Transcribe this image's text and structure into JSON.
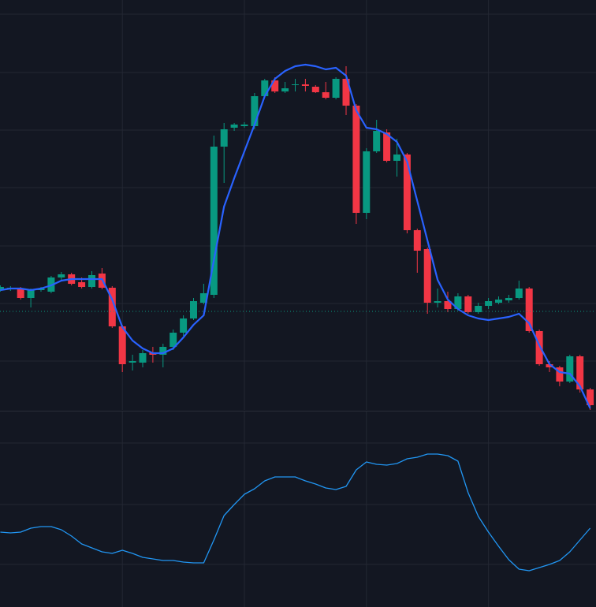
{
  "chart_data": [
    {
      "type": "candlestick",
      "categories": [
        null,
        null,
        null,
        null,
        null,
        null,
        null,
        null,
        null,
        null,
        null,
        null,
        null,
        null,
        null,
        null,
        null,
        null,
        null,
        null,
        null,
        null,
        null,
        null,
        null,
        null,
        null,
        null,
        null,
        null,
        null,
        null,
        null,
        null,
        null,
        null,
        null,
        null,
        null,
        null,
        null,
        null,
        null,
        null,
        null,
        null,
        null,
        null,
        null,
        null,
        null,
        null,
        null,
        null,
        null,
        null,
        null,
        null,
        null
      ],
      "open": [
        152,
        154,
        154,
        142,
        152,
        150,
        168,
        172,
        162,
        156,
        173,
        155,
        106,
        60,
        60,
        73,
        70,
        80,
        98,
        116,
        136,
        146,
        334,
        358,
        360,
        360,
        398,
        418,
        404,
        412,
        413,
        410,
        403,
        396,
        420,
        386,
        250,
        328,
        352,
        316,
        324,
        228,
        204,
        136,
        138,
        128,
        144,
        124,
        132,
        136,
        139,
        142,
        154,
        100,
        58,
        54,
        36,
        68,
        26
      ],
      "high": [
        158,
        157,
        156,
        154,
        156,
        170,
        175,
        174,
        168,
        176,
        180,
        157,
        108,
        70,
        76,
        80,
        84,
        102,
        120,
        142,
        160,
        348,
        364,
        364,
        365,
        402,
        420,
        422,
        416,
        420,
        420,
        412,
        416,
        422,
        436,
        388,
        332,
        368,
        356,
        344,
        326,
        230,
        206,
        154,
        150,
        148,
        146,
        136,
        142,
        144,
        146,
        164,
        156,
        102,
        62,
        56,
        70,
        70,
        28
      ],
      "low": [
        150,
        151,
        140,
        130,
        150,
        148,
        164,
        158,
        154,
        154,
        153,
        104,
        48,
        50,
        54,
        60,
        54,
        76,
        94,
        114,
        134,
        142,
        288,
        354,
        358,
        356,
        396,
        402,
        402,
        404,
        404,
        402,
        394,
        394,
        374,
        236,
        242,
        326,
        314,
        296,
        224,
        174,
        122,
        130,
        124,
        126,
        122,
        122,
        128,
        134,
        136,
        140,
        98,
        56,
        48,
        30,
        34,
        22,
        0
      ],
      "close": [
        156,
        155,
        142,
        152,
        154,
        168,
        172,
        160,
        156,
        171,
        155,
        106,
        58,
        62,
        72,
        70,
        80,
        98,
        116,
        138,
        148,
        334,
        356,
        362,
        362,
        398,
        418,
        404,
        408,
        413,
        411,
        403,
        396,
        420,
        386,
        250,
        328,
        354,
        316,
        324,
        228,
        202,
        136,
        138,
        128,
        144,
        124,
        132,
        138,
        140,
        142,
        154,
        100,
        58,
        54,
        36,
        68,
        26,
        6
      ],
      "up_color": "#089981",
      "down_color": "#f23645",
      "overlay": {
        "color": "#2962ff",
        "values": [
          152,
          154,
          154,
          152,
          154,
          158,
          164,
          166,
          166,
          166,
          166,
          140,
          105,
          88,
          78,
          72,
          72,
          78,
          92,
          108,
          120,
          190,
          258,
          294,
          328,
          362,
          398,
          420,
          430,
          436,
          438,
          436,
          432,
          434,
          424,
          380,
          358,
          356,
          350,
          340,
          315,
          265,
          215,
          165,
          140,
          128,
          120,
          116,
          114,
          116,
          118,
          122,
          110,
          82,
          58,
          48,
          46,
          30,
          2
        ]
      },
      "price_line": {
        "value": 125,
        "color": "#089981"
      },
      "ylim": [
        0,
        520
      ],
      "yticks": [
        62,
        135,
        208,
        282,
        355,
        428,
        502
      ],
      "xticks": [
        12,
        24,
        36,
        48
      ],
      "grid": true
    },
    {
      "type": "line",
      "values": [
        95,
        94,
        95,
        100,
        102,
        102,
        98,
        90,
        80,
        75,
        70,
        68,
        72,
        68,
        63,
        61,
        59,
        59,
        57,
        56,
        56,
        85,
        116,
        130,
        143,
        150,
        160,
        165,
        165,
        165,
        160,
        156,
        151,
        149,
        153,
        174,
        184,
        181,
        180,
        182,
        188,
        190,
        194,
        194,
        192,
        185,
        145,
        115,
        95,
        77,
        60,
        48,
        46,
        50,
        54,
        59,
        70,
        85,
        100
      ],
      "color": "#2196f3",
      "ylim": [
        0,
        248
      ],
      "yticks": [
        54,
        130,
        208
      ],
      "xticks": [
        12,
        24,
        36,
        48
      ],
      "grid": true
    }
  ]
}
